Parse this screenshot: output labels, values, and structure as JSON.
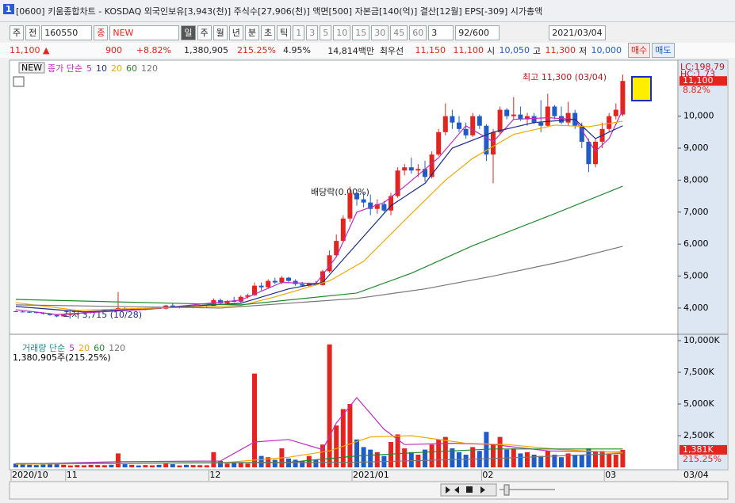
{
  "window": {
    "title": "[0600] 키움종합차트 - KOSDAQ 외국인보유[3,943(천)] 주식수[27,906(천)] 액면[500] 자본금[140(억)] 결산[12월] EPS[-309] 시가총액"
  },
  "toolbar": {
    "left": [
      "주",
      "전"
    ],
    "code": "160550",
    "badge": "종",
    "name": "NEW",
    "periods": [
      "일",
      "주",
      "월",
      "년",
      "분",
      "초",
      "틱"
    ],
    "intervals": [
      "1",
      "3",
      "5",
      "10",
      "15",
      "30",
      "45",
      "60"
    ],
    "count_select": "3",
    "count": "92/600",
    "date": "2021/03/04"
  },
  "quote": {
    "price": "11,100",
    "arrow": "▲",
    "change": "900",
    "rate": "+8.82%",
    "volume": "1,380,905",
    "volume_rate": "215.25%",
    "turnover": "4.95%",
    "amount": "14,814백만",
    "best": "최우선",
    "ask": "11,150",
    "bid": "11,100",
    "open_label": "시",
    "open": "10,050",
    "high_label": "고",
    "high": "11,300",
    "low_label": "저",
    "low": "10,000",
    "buy": "매수",
    "sell": "매도"
  },
  "annotations": [
    "최고 11,300 (03/04)",
    "최저 3,715 (10/28)",
    "배당락(0.00%)"
  ],
  "cursor_date": "03/04",
  "chart_data": [
    {
      "type": "candlestick",
      "legend_title": "종가 단순",
      "up_color": "#e3241f",
      "down_color": "#1f5cc8",
      "categories": [
        "2020/10",
        null,
        null,
        null,
        null,
        null,
        null,
        null,
        "11",
        null,
        null,
        null,
        null,
        null,
        null,
        null,
        null,
        null,
        null,
        null,
        null,
        null,
        null,
        null,
        null,
        null,
        null,
        null,
        null,
        "12",
        null,
        null,
        null,
        null,
        null,
        null,
        null,
        null,
        null,
        null,
        null,
        null,
        null,
        null,
        null,
        null,
        null,
        null,
        null,
        null,
        "2021/01",
        null,
        null,
        null,
        null,
        null,
        null,
        null,
        null,
        null,
        null,
        null,
        null,
        null,
        null,
        null,
        null,
        null,
        null,
        "02",
        null,
        null,
        null,
        null,
        null,
        null,
        null,
        null,
        null,
        null,
        null,
        null,
        null,
        null,
        null,
        null,
        null,
        "03",
        null,
        null
      ],
      "open": [
        3900,
        3890,
        3880,
        3870,
        3850,
        3820,
        3780,
        3740,
        3790,
        3810,
        3830,
        3850,
        3880,
        3900,
        3930,
        3920,
        3990,
        3950,
        3970,
        3960,
        3990,
        4000,
        3980,
        4080,
        4020,
        4040,
        4010,
        4030,
        4050,
        4060,
        4250,
        4150,
        4220,
        4200,
        4350,
        4400,
        4700,
        4650,
        4850,
        4800,
        4950,
        4850,
        4750,
        4700,
        4780,
        4720,
        5150,
        5650,
        6100,
        6800,
        7600,
        7400,
        7300,
        7100,
        7250,
        7050,
        7500,
        8300,
        8400,
        8300,
        8350,
        8100,
        8800,
        9500,
        10000,
        9800,
        9600,
        9400,
        10000,
        9700,
        8800,
        9500,
        10200,
        10000,
        10050,
        9900,
        10000,
        9800,
        9700,
        10300,
        10000,
        9800,
        10100,
        9700,
        9200,
        8500,
        9200,
        9600,
        10000,
        10050
      ],
      "high": [
        3920,
        3910,
        3900,
        3890,
        3870,
        3840,
        3800,
        3800,
        3830,
        3850,
        3870,
        3900,
        3920,
        3950,
        3970,
        4500,
        4020,
        4000,
        4010,
        4000,
        4030,
        4050,
        4100,
        4150,
        4060,
        4070,
        4050,
        4080,
        4080,
        4300,
        4300,
        4250,
        4350,
        4400,
        4450,
        4800,
        4800,
        4900,
        4950,
        5000,
        4980,
        4900,
        4820,
        4800,
        4850,
        5200,
        5800,
        6300,
        6900,
        7800,
        7700,
        7600,
        7550,
        7400,
        7350,
        7600,
        8400,
        8500,
        8700,
        8500,
        8600,
        8900,
        9600,
        10400,
        10200,
        10000,
        9800,
        10100,
        10050,
        9750,
        9600,
        10300,
        10250,
        10600,
        10300,
        10100,
        10100,
        10500,
        10700,
        10350,
        10300,
        10450,
        10200,
        9800,
        9300,
        9300,
        9800,
        10100,
        10400,
        11300
      ],
      "low": [
        3870,
        3860,
        3850,
        3830,
        3800,
        3760,
        3715,
        3730,
        3770,
        3790,
        3810,
        3830,
        3860,
        3880,
        3900,
        3900,
        3920,
        3920,
        3940,
        3930,
        3960,
        3970,
        3960,
        4000,
        3990,
        4000,
        3990,
        4000,
        4020,
        4050,
        4100,
        4120,
        4180,
        4150,
        4300,
        4380,
        4550,
        4600,
        4750,
        4750,
        4800,
        4700,
        4680,
        4650,
        4700,
        4700,
        5100,
        5600,
        6050,
        6700,
        7200,
        7150,
        6900,
        6950,
        7000,
        6900,
        7450,
        8150,
        8200,
        8100,
        7950,
        8050,
        8750,
        9400,
        9600,
        9500,
        9300,
        9350,
        9600,
        8600,
        7900,
        9450,
        9900,
        9900,
        9850,
        9700,
        9750,
        9500,
        9650,
        9900,
        9750,
        9700,
        9600,
        9000,
        8250,
        8400,
        9000,
        9500,
        9900,
        10000
      ],
      "close": [
        3890,
        3880,
        3870,
        3850,
        3820,
        3780,
        3740,
        3790,
        3810,
        3830,
        3850,
        3880,
        3900,
        3930,
        3920,
        4000,
        3950,
        3970,
        3960,
        3990,
        4000,
        3980,
        4080,
        4020,
        4040,
        4010,
        4030,
        4050,
        4060,
        4250,
        4150,
        4220,
        4200,
        4350,
        4400,
        4700,
        4650,
        4850,
        4800,
        4950,
        4850,
        4750,
        4700,
        4780,
        4720,
        5150,
        5650,
        6100,
        6800,
        7600,
        7400,
        7300,
        7100,
        7250,
        7050,
        7500,
        8300,
        8400,
        8300,
        8350,
        8100,
        8800,
        9500,
        10000,
        9800,
        9600,
        9400,
        10000,
        9700,
        8800,
        9500,
        10200,
        10000,
        10050,
        9900,
        10000,
        9800,
        9700,
        10300,
        10000,
        9800,
        10100,
        9700,
        9200,
        8500,
        9200,
        9600,
        10000,
        10200,
        11100
      ],
      "series": [
        {
          "name": "5",
          "color": "#c02cc0",
          "x": [
            0,
            6,
            20,
            33,
            39,
            44,
            47,
            50,
            54,
            57,
            62,
            66,
            70,
            73,
            78,
            82,
            85,
            87,
            89
          ],
          "values": [
            3950,
            3800,
            3970,
            4250,
            4800,
            4770,
            5600,
            7000,
            7300,
            7800,
            8700,
            9700,
            9200,
            9900,
            9950,
            9900,
            8900,
            9300,
            10200
          ]
        },
        {
          "name": "10",
          "color": "#1a2a8c",
          "x": [
            0,
            10,
            33,
            40,
            45,
            50,
            55,
            60,
            64,
            70,
            76,
            82,
            85,
            89
          ],
          "values": [
            4050,
            3880,
            4150,
            4600,
            4800,
            6000,
            7200,
            7900,
            9000,
            9500,
            9800,
            9900,
            9300,
            9700
          ]
        },
        {
          "name": "20",
          "color": "#f0a800",
          "x": [
            0,
            9,
            33,
            38,
            46,
            51,
            58,
            63,
            67,
            73,
            79,
            84,
            89
          ],
          "values": [
            4170,
            3930,
            4080,
            4350,
            4850,
            5460,
            6950,
            8000,
            8680,
            9430,
            9720,
            9670,
            9840
          ]
        },
        {
          "name": "60",
          "color": "#1e8a2e",
          "x": [
            0,
            33,
            50,
            58,
            67,
            79,
            89
          ],
          "values": [
            4270,
            4100,
            4470,
            5090,
            5950,
            6950,
            7810
          ]
        },
        {
          "name": "120",
          "color": "#777777",
          "x": [
            0,
            30,
            50,
            60,
            70,
            80,
            89
          ],
          "values": [
            4100,
            4000,
            4300,
            4600,
            5000,
            5450,
            5930
          ]
        }
      ],
      "ylim": [
        3230,
        11650
      ],
      "yticks": [
        {
          "value": 4000,
          "label": "4,000"
        },
        {
          "value": 5000,
          "label": "5,000"
        },
        {
          "value": 6000,
          "label": "6,000"
        },
        {
          "value": 7000,
          "label": "7,000"
        },
        {
          "value": 8000,
          "label": "8,000"
        },
        {
          "value": 9000,
          "label": "9,000"
        },
        {
          "value": 10000,
          "label": "10,000"
        }
      ],
      "side_labels": [
        "LC:198.79",
        "HC:1.73"
      ],
      "last_label": "11,100",
      "last_rate": "8.82%"
    },
    {
      "type": "bar",
      "legend_title": "거래량 단순",
      "info": "1,380,905주(215.25%)",
      "up_color": "#e3241f",
      "down_color": "#1f5cc8",
      "values": [
        300,
        250,
        200,
        180,
        220,
        350,
        300,
        200,
        150,
        180,
        160,
        200,
        180,
        170,
        200,
        1100,
        250,
        200,
        150,
        180,
        160,
        200,
        300,
        250,
        150,
        200,
        180,
        170,
        160,
        1200,
        500,
        300,
        400,
        350,
        300,
        7400,
        900,
        800,
        600,
        1500,
        700,
        600,
        500,
        900,
        600,
        1800,
        9700,
        3300,
        4600,
        5000,
        2200,
        1600,
        1400,
        1200,
        900,
        2000,
        2600,
        1500,
        1200,
        1000,
        1400,
        1800,
        2200,
        2400,
        1500,
        1200,
        1000,
        1600,
        1300,
        2800,
        1800,
        2400,
        1400,
        1500,
        1100,
        1200,
        1000,
        900,
        1300,
        1000,
        800,
        1100,
        1000,
        1000,
        1500,
        1300,
        1300,
        1100,
        1000,
        1381
      ],
      "series": [
        {
          "name": "5",
          "color": "#c02cc0",
          "x": [
            0,
            15,
            30,
            35,
            40,
            45,
            47,
            50,
            54,
            57,
            64,
            70,
            78,
            89
          ],
          "values": [
            250,
            450,
            500,
            2000,
            2200,
            1400,
            3500,
            5500,
            3000,
            1800,
            1900,
            1800,
            1300,
            1200
          ]
        },
        {
          "name": "20",
          "color": "#f0a800",
          "x": [
            0,
            30,
            40,
            46,
            52,
            58,
            66,
            72,
            80,
            89
          ],
          "values": [
            250,
            350,
            800,
            1300,
            2400,
            2500,
            1900,
            1800,
            1400,
            1150
          ]
        },
        {
          "name": "60",
          "color": "#1e8a2e",
          "x": [
            0,
            40,
            50,
            60,
            70,
            80,
            89
          ],
          "values": [
            300,
            400,
            900,
            1200,
            1450,
            1450,
            1450
          ]
        },
        {
          "name": "120",
          "color": "#777777",
          "x": [
            0,
            50,
            70,
            89
          ],
          "values": [
            300,
            400,
            700,
            1100
          ]
        }
      ],
      "ylim": [
        0,
        10375
      ],
      "yticks": [
        {
          "value": 2500,
          "label": "2,500K"
        },
        {
          "value": 5000,
          "label": "5,000K"
        },
        {
          "value": 7500,
          "label": "7,500K"
        },
        {
          "value": 10000,
          "label": "10,000K"
        }
      ],
      "last_label": "1,381K",
      "last_rate": "215.25%"
    }
  ]
}
